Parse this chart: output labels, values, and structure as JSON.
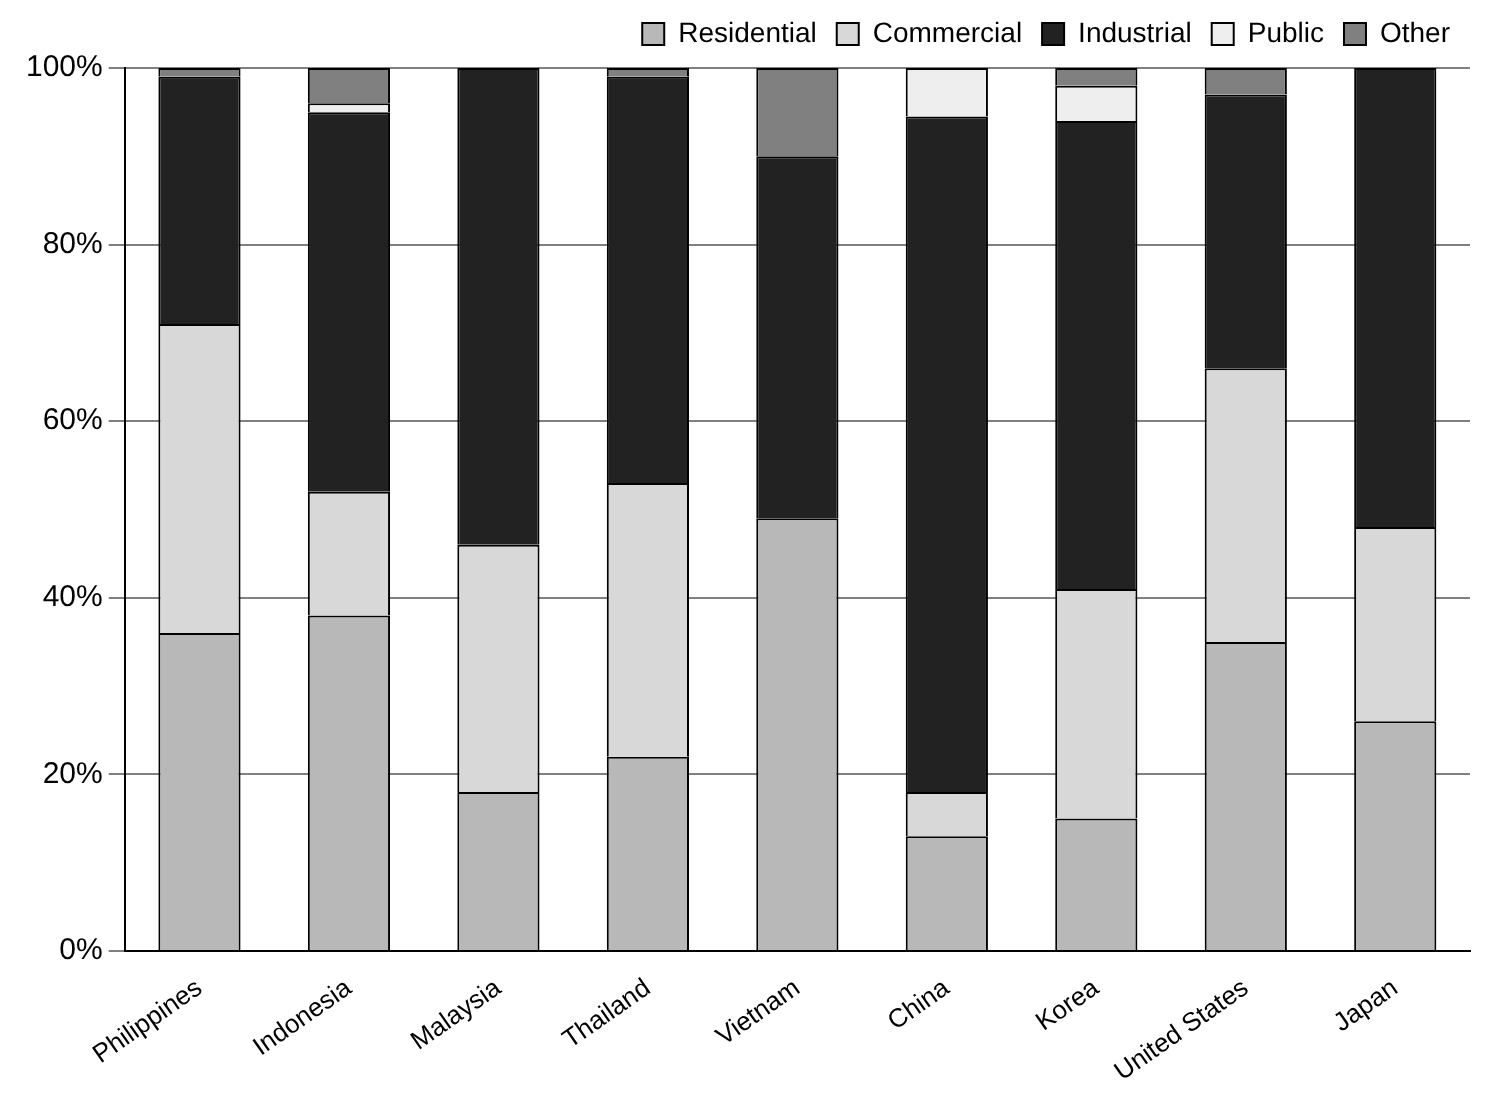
{
  "chart_data": {
    "type": "bar",
    "stacked": true,
    "categories": [
      "Philippines",
      "Indonesia",
      "Malaysia",
      "Thailand",
      "Vietnam",
      "China",
      "Korea",
      "United States",
      "Japan"
    ],
    "series": [
      {
        "name": "Residential",
        "color": "#b8b8b8",
        "values": [
          36,
          38,
          18,
          22,
          49,
          13,
          15,
          35,
          26
        ]
      },
      {
        "name": "Commercial",
        "color": "#d8d8d8",
        "values": [
          35,
          14,
          28,
          31,
          0,
          5,
          26,
          31,
          22
        ]
      },
      {
        "name": "Industrial",
        "color": "#222222",
        "values": [
          28,
          43,
          54,
          46,
          41,
          76.5,
          53,
          31,
          52
        ]
      },
      {
        "name": "Public",
        "color": "#eeeeee",
        "values": [
          0,
          1,
          0,
          0,
          0,
          5.5,
          4,
          0,
          0
        ]
      },
      {
        "name": "Other",
        "color": "#808080",
        "values": [
          1,
          4,
          0,
          1,
          10,
          0,
          2,
          3,
          0
        ]
      }
    ],
    "ylim": [
      0,
      100
    ],
    "yticks": [
      {
        "value": 0,
        "label": "0%"
      },
      {
        "value": 20,
        "label": "20%"
      },
      {
        "value": 40,
        "label": "40%"
      },
      {
        "value": 60,
        "label": "60%"
      },
      {
        "value": 80,
        "label": "80%"
      },
      {
        "value": 100,
        "label": "100%"
      }
    ],
    "grid": "y",
    "legend": "top right"
  }
}
